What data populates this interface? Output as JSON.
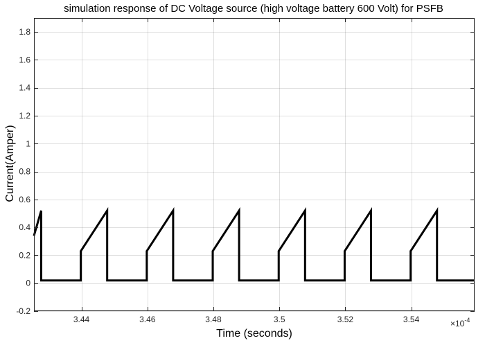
{
  "chart_data": {
    "type": "line",
    "title": "simulation response of DC Voltage source (high voltage battery  600 Volt) for PSFB",
    "xlabel": "Time (seconds)",
    "ylabel": "Current(Amper)",
    "x_exponent_label": "×10",
    "x_exponent_power": "-4",
    "xlim": [
      3.4256,
      3.5592
    ],
    "ylim": [
      -0.2,
      1.9
    ],
    "x_ticks": [
      3.44,
      3.46,
      3.48,
      3.5,
      3.52,
      3.54
    ],
    "x_tick_labels": [
      "3.44",
      "3.46",
      "3.48",
      "3.5",
      "3.52",
      "3.54"
    ],
    "y_ticks": [
      -0.2,
      0,
      0.2,
      0.4,
      0.6,
      0.8,
      1,
      1.2,
      1.4,
      1.6,
      1.8
    ],
    "y_tick_labels": [
      "-0.2",
      "0",
      "0.2",
      "0.4",
      "0.6",
      "0.8",
      "1",
      "1.2",
      "1.4",
      "1.6",
      "1.8"
    ],
    "grid": true,
    "series": [
      {
        "color": "#000000",
        "x": [
          3.4256,
          3.4278,
          3.4278,
          3.4398,
          3.4398,
          3.4478,
          3.4478,
          3.4598,
          3.4598,
          3.4678,
          3.4678,
          3.4798,
          3.4798,
          3.4878,
          3.4878,
          3.4998,
          3.4998,
          3.5078,
          3.5078,
          3.5198,
          3.5198,
          3.5278,
          3.5278,
          3.5398,
          3.5398,
          3.5478,
          3.5478,
          3.5592
        ],
        "y": [
          0.34,
          0.52,
          0.02,
          0.02,
          0.23,
          0.52,
          0.02,
          0.02,
          0.23,
          0.52,
          0.02,
          0.02,
          0.23,
          0.52,
          0.02,
          0.02,
          0.23,
          0.52,
          0.02,
          0.02,
          0.23,
          0.52,
          0.02,
          0.02,
          0.23,
          0.52,
          0.02,
          0.02
        ]
      }
    ]
  }
}
